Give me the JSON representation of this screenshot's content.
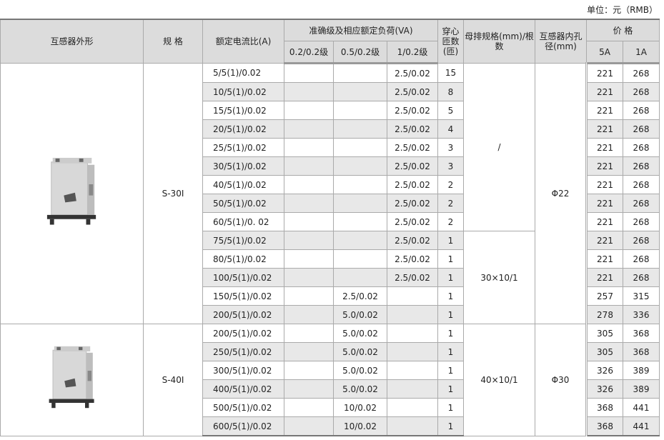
{
  "unit_label": "单位：元（RMB）",
  "headers": {
    "shape": "互感器外形",
    "spec": "规 格",
    "ratio": "额定电流比(A)",
    "accuracy": "准确级及相应额定负荷(VA)",
    "acc_02": "0.2/0.2级",
    "acc_05": "0.5/0.2级",
    "acc_1": "1/0.2级",
    "turns": "穿心匝数(匝)",
    "busbar": "母排规格(mm)/根数",
    "bore": "互感器内孔径(mm)",
    "price": "价 格",
    "price_5a": "5A",
    "price_1a": "1A"
  },
  "groups": [
    {
      "spec": "S-30I",
      "image_icon": "current-transformer-s30i",
      "bore": "Φ22",
      "busbar": [
        {
          "value": "/",
          "span": 9
        },
        {
          "value": "30×10/1",
          "span": 5
        }
      ],
      "rows": [
        [
          "5/5(1)/0.02",
          "",
          "",
          "2.5/0.02",
          "15",
          "221",
          "268"
        ],
        [
          "10/5(1)/0.02",
          "",
          "",
          "2.5/0.02",
          "8",
          "221",
          "268"
        ],
        [
          "15/5(1)/0.02",
          "",
          "",
          "2.5/0.02",
          "5",
          "221",
          "268"
        ],
        [
          "20/5(1)/0.02",
          "",
          "",
          "2.5/0.02",
          "4",
          "221",
          "268"
        ],
        [
          "25/5(1)/0.02",
          "",
          "",
          "2.5/0.02",
          "3",
          "221",
          "268"
        ],
        [
          "30/5(1)/0.02",
          "",
          "",
          "2.5/0.02",
          "3",
          "221",
          "268"
        ],
        [
          "40/5(1)/0.02",
          "",
          "",
          "2.5/0.02",
          "2",
          "221",
          "268"
        ],
        [
          "50/5(1)/0.02",
          "",
          "",
          "2.5/0.02",
          "2",
          "221",
          "268"
        ],
        [
          "60/5(1)/0.  02",
          "",
          "",
          "2.5/0.02",
          "2",
          "221",
          "268"
        ],
        [
          "75/5(1)/0.02",
          "",
          "",
          "2.5/0.02",
          "1",
          "221",
          "268"
        ],
        [
          "80/5(1)/0.02",
          "",
          "",
          "2.5/0.02",
          "1",
          "221",
          "268"
        ],
        [
          "100/5(1)/0.02",
          "",
          "",
          "2.5/0.02",
          "1",
          "221",
          "268"
        ],
        [
          "150/5(1)/0.02",
          "",
          "2.5/0.02",
          "",
          "1",
          "257",
          "315"
        ],
        [
          "200/5(1)/0.02",
          "",
          "5.0/0.02",
          "",
          "1",
          "278",
          "336"
        ]
      ]
    },
    {
      "spec": "S-40I",
      "image_icon": "current-transformer-s40i",
      "bore": "Φ30",
      "busbar": [
        {
          "value": "40×10/1",
          "span": 6
        }
      ],
      "rows": [
        [
          "200/5(1)/0.02",
          "",
          "5.0/0.02",
          "",
          "1",
          "305",
          "368"
        ],
        [
          "250/5(1)/0.02",
          "",
          "5.0/0.02",
          "",
          "1",
          "305",
          "368"
        ],
        [
          "300/5(1)/0.02",
          "",
          "5.0/0.02",
          "",
          "1",
          "326",
          "389"
        ],
        [
          "400/5(1)/0.02",
          "",
          "5.0/0.02",
          "",
          "1",
          "326",
          "389"
        ],
        [
          "500/5(1)/0.02",
          "",
          "10/0.02",
          "",
          "1",
          "368",
          "441"
        ],
        [
          "600/5(1)/0.02",
          "",
          "10/0.02",
          "",
          "1",
          "368",
          "441"
        ]
      ]
    }
  ]
}
